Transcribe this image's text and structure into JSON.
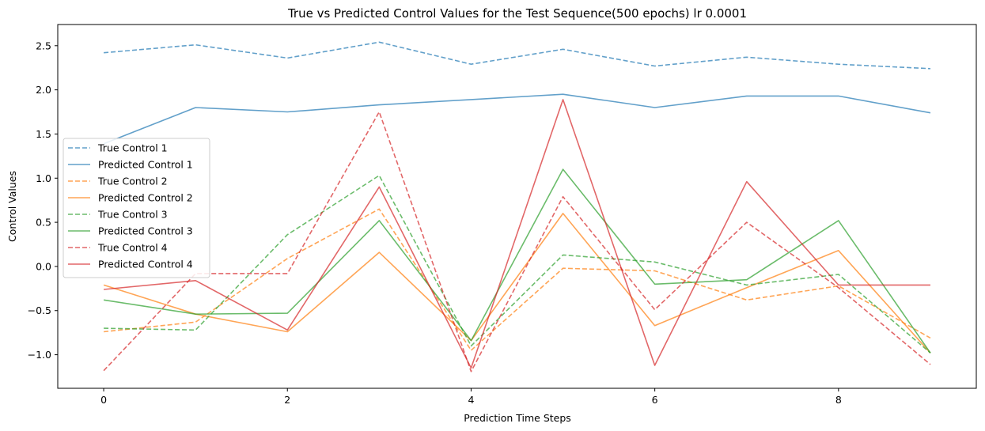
{
  "chart_data": {
    "type": "line",
    "title": "True vs Predicted Control Values for the Test Sequence(500 epochs) lr 0.0001",
    "xlabel": "Prediction Time Steps",
    "ylabel": "Control Values",
    "xlim": [
      -0.5,
      9.5
    ],
    "ylim": [
      -1.38,
      2.74
    ],
    "xticks": [
      0,
      2,
      4,
      6,
      8
    ],
    "xtick_labels": [
      "0",
      "2",
      "4",
      "6",
      "8"
    ],
    "yticks": [
      -1.0,
      -0.5,
      0.0,
      0.5,
      1.0,
      1.5,
      2.0,
      2.5
    ],
    "ytick_labels": [
      "−1.0",
      "−0.5",
      "0.0",
      "0.5",
      "1.0",
      "1.5",
      "2.0",
      "2.5"
    ],
    "grid": false,
    "legend_position": "center-left",
    "x": [
      0,
      1,
      2,
      3,
      4,
      5,
      6,
      7,
      8,
      9
    ],
    "series": [
      {
        "name": "True Control 1",
        "color": "#1f77b4",
        "dashed": true,
        "values": [
          2.42,
          2.51,
          2.36,
          2.54,
          2.29,
          2.46,
          2.27,
          2.37,
          2.29,
          2.24
        ]
      },
      {
        "name": "Predicted Control 1",
        "color": "#1f77b4",
        "dashed": false,
        "values": [
          1.39,
          1.8,
          1.75,
          1.83,
          1.89,
          1.95,
          1.8,
          1.93,
          1.93,
          1.74
        ]
      },
      {
        "name": "True Control 2",
        "color": "#ff7f0e",
        "dashed": true,
        "values": [
          -0.74,
          -0.63,
          0.09,
          0.65,
          -0.95,
          -0.02,
          -0.05,
          -0.38,
          -0.22,
          -0.81
        ]
      },
      {
        "name": "Predicted Control 2",
        "color": "#ff7f0e",
        "dashed": false,
        "values": [
          -0.21,
          -0.54,
          -0.74,
          0.16,
          -0.84,
          0.6,
          -0.67,
          -0.24,
          0.18,
          -0.98
        ]
      },
      {
        "name": "True Control 3",
        "color": "#2ca02c",
        "dashed": true,
        "values": [
          -0.7,
          -0.72,
          0.36,
          1.03,
          -0.9,
          0.13,
          0.05,
          -0.21,
          -0.09,
          -0.98
        ]
      },
      {
        "name": "Predicted Control 3",
        "color": "#2ca02c",
        "dashed": false,
        "values": [
          -0.38,
          -0.54,
          -0.53,
          0.52,
          -0.84,
          1.1,
          -0.2,
          -0.15,
          0.52,
          -0.98
        ]
      },
      {
        "name": "True Control 4",
        "color": "#d62728",
        "dashed": true,
        "values": [
          -1.18,
          -0.08,
          -0.08,
          1.75,
          -1.19,
          0.79,
          -0.49,
          0.5,
          -0.24,
          -1.11
        ]
      },
      {
        "name": "Predicted Control 4",
        "color": "#d62728",
        "dashed": false,
        "values": [
          -0.26,
          -0.16,
          -0.72,
          0.9,
          -1.15,
          1.89,
          -1.12,
          0.96,
          -0.21,
          -0.21
        ]
      }
    ]
  }
}
